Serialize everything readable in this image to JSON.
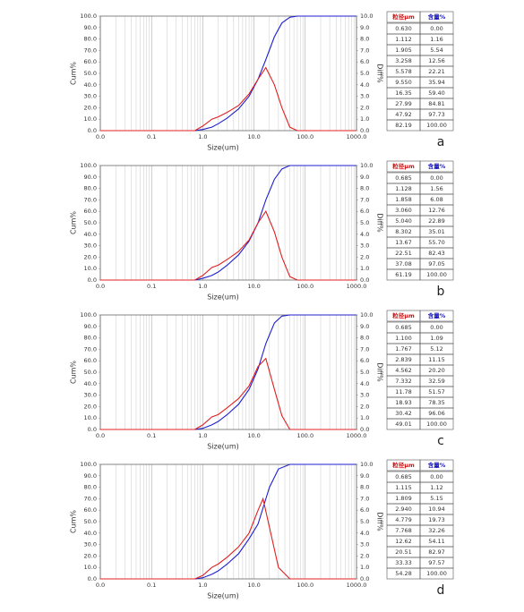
{
  "chart_data": [
    {
      "type": "line",
      "panel_label": "a",
      "x_label": "Size(um)",
      "y_label": "Cum%",
      "y2_label": "Diff%",
      "xscale": "log",
      "xlim": [
        0.01,
        1000
      ],
      "xticks": [
        {
          "value": 0.01,
          "label": "0.0"
        },
        {
          "value": 0.1,
          "label": "0.1"
        },
        {
          "value": 1,
          "label": "1.0"
        },
        {
          "value": 10,
          "label": "10.0"
        },
        {
          "value": 100,
          "label": "100.0"
        },
        {
          "value": 1000,
          "label": "1000.0"
        }
      ],
      "ylim": [
        0,
        100
      ],
      "yticks": [
        {
          "value": 0,
          "label": "0.0"
        },
        {
          "value": 10,
          "label": "10.0"
        },
        {
          "value": 20,
          "label": "20.0"
        },
        {
          "value": 30,
          "label": "30.0"
        },
        {
          "value": 40,
          "label": "40.0"
        },
        {
          "value": 50,
          "label": "50.0"
        },
        {
          "value": 60,
          "label": "60.0"
        },
        {
          "value": 70,
          "label": "70.0"
        },
        {
          "value": 80,
          "label": "80.0"
        },
        {
          "value": 90,
          "label": "90.0"
        },
        {
          "value": 100,
          "label": "100.0"
        }
      ],
      "y2lim": [
        0,
        10
      ],
      "y2ticks": [
        {
          "value": 0,
          "label": "0.0"
        },
        {
          "value": 1,
          "label": "1.0"
        },
        {
          "value": 2,
          "label": "2.0"
        },
        {
          "value": 3,
          "label": "3.0"
        },
        {
          "value": 4,
          "label": "4.0"
        },
        {
          "value": 5,
          "label": "5.0"
        },
        {
          "value": 6,
          "label": "6.0"
        },
        {
          "value": 7,
          "label": "7.0"
        },
        {
          "value": 8,
          "label": "8.0"
        },
        {
          "value": 9,
          "label": "9.0"
        },
        {
          "value": 10,
          "label": "10.0"
        }
      ],
      "x": [
        0.01,
        0.7,
        1,
        1.5,
        2,
        3,
        5,
        8,
        12,
        17,
        25,
        35,
        50,
        70,
        1000
      ],
      "series": [
        {
          "color": "#1f1fd0",
          "values": [
            0,
            0,
            1,
            3,
            6,
            11,
            19,
            30,
            45,
            62,
            82,
            94,
            99,
            100,
            100
          ]
        },
        {
          "color": "#e02020",
          "axis": "y2",
          "values": [
            0,
            0,
            0.4,
            1,
            1.2,
            1.6,
            2.2,
            3.2,
            4.5,
            5.5,
            4,
            2,
            0.3,
            0,
            0
          ]
        }
      ],
      "table": {
        "columns": [
          "粒径μm",
          "含量%"
        ],
        "rows": [
          [
            "0.630",
            "0.00"
          ],
          [
            "1.112",
            "1.16"
          ],
          [
            "1.905",
            "5.54"
          ],
          [
            "3.258",
            "12.56"
          ],
          [
            "5.578",
            "22.21"
          ],
          [
            "9.550",
            "35.94"
          ],
          [
            "16.35",
            "59.40"
          ],
          [
            "27.99",
            "84.81"
          ],
          [
            "47.92",
            "97.73"
          ],
          [
            "82.19",
            "100.00"
          ]
        ]
      }
    },
    {
      "type": "line",
      "panel_label": "b",
      "x_label": "Size(um)",
      "y_label": "Cum%",
      "y2_label": "Diff%",
      "xscale": "log",
      "xlim": [
        0.01,
        1000
      ],
      "xticks": [
        {
          "value": 0.01,
          "label": "0.0"
        },
        {
          "value": 0.1,
          "label": "0.1"
        },
        {
          "value": 1,
          "label": "1.0"
        },
        {
          "value": 10,
          "label": "10.0"
        },
        {
          "value": 100,
          "label": "100.0"
        },
        {
          "value": 1000,
          "label": "1000.0"
        }
      ],
      "ylim": [
        0,
        100
      ],
      "yticks": [
        {
          "value": 0,
          "label": "0.0"
        },
        {
          "value": 10,
          "label": "10.0"
        },
        {
          "value": 20,
          "label": "20.0"
        },
        {
          "value": 30,
          "label": "30.0"
        },
        {
          "value": 40,
          "label": "40.0"
        },
        {
          "value": 50,
          "label": "50.0"
        },
        {
          "value": 60,
          "label": "60.0"
        },
        {
          "value": 70,
          "label": "70.0"
        },
        {
          "value": 80,
          "label": "80.0"
        },
        {
          "value": 90,
          "label": "90.0"
        },
        {
          "value": 100,
          "label": "100.0"
        }
      ],
      "y2lim": [
        0,
        10
      ],
      "y2ticks": [
        {
          "value": 0,
          "label": "0.0"
        },
        {
          "value": 1,
          "label": "1.0"
        },
        {
          "value": 2,
          "label": "2.0"
        },
        {
          "value": 3,
          "label": "3.0"
        },
        {
          "value": 4,
          "label": "4.0"
        },
        {
          "value": 5,
          "label": "5.0"
        },
        {
          "value": 6,
          "label": "6.0"
        },
        {
          "value": 7,
          "label": "7.0"
        },
        {
          "value": 8,
          "label": "8.0"
        },
        {
          "value": 9,
          "label": "9.0"
        },
        {
          "value": 10,
          "label": "10.0"
        }
      ],
      "x": [
        0.01,
        0.7,
        1,
        1.5,
        2,
        3,
        5,
        8,
        12,
        17,
        25,
        35,
        50,
        70,
        1000
      ],
      "series": [
        {
          "color": "#1f1fd0",
          "values": [
            0,
            0,
            1.5,
            4,
            7,
            13,
            22,
            34,
            50,
            70,
            88,
            97,
            100,
            100,
            100
          ]
        },
        {
          "color": "#e02020",
          "axis": "y2",
          "values": [
            0,
            0,
            0.4,
            1.1,
            1.3,
            1.8,
            2.5,
            3.5,
            5,
            6,
            4.2,
            2,
            0.3,
            0,
            0
          ]
        }
      ],
      "table": {
        "columns": [
          "粒径μm",
          "含量%"
        ],
        "rows": [
          [
            "0.685",
            "0.00"
          ],
          [
            "1.128",
            "1.56"
          ],
          [
            "1.858",
            "6.08"
          ],
          [
            "3.060",
            "12.76"
          ],
          [
            "5.040",
            "22.89"
          ],
          [
            "8.302",
            "35.01"
          ],
          [
            "13.67",
            "55.70"
          ],
          [
            "22.51",
            "82.43"
          ],
          [
            "37.08",
            "97.05"
          ],
          [
            "61.19",
            "100.00"
          ]
        ]
      }
    },
    {
      "type": "line",
      "panel_label": "c",
      "x_label": "Size(um)",
      "y_label": "Cum%",
      "y2_label": "Diff%",
      "xscale": "log",
      "xlim": [
        0.01,
        1000
      ],
      "xticks": [
        {
          "value": 0.01,
          "label": "0.0"
        },
        {
          "value": 0.1,
          "label": "0.1"
        },
        {
          "value": 1,
          "label": "1.0"
        },
        {
          "value": 10,
          "label": "10.0"
        },
        {
          "value": 100,
          "label": "100.0"
        },
        {
          "value": 1000,
          "label": "1000.0"
        }
      ],
      "ylim": [
        0,
        100
      ],
      "yticks": [
        {
          "value": 0,
          "label": "0.0"
        },
        {
          "value": 10,
          "label": "10.0"
        },
        {
          "value": 20,
          "label": "20.0"
        },
        {
          "value": 30,
          "label": "30.0"
        },
        {
          "value": 40,
          "label": "40.0"
        },
        {
          "value": 50,
          "label": "50.0"
        },
        {
          "value": 60,
          "label": "60.0"
        },
        {
          "value": 70,
          "label": "70.0"
        },
        {
          "value": 80,
          "label": "80.0"
        },
        {
          "value": 90,
          "label": "90.0"
        },
        {
          "value": 100,
          "label": "100.0"
        }
      ],
      "y2lim": [
        0,
        10
      ],
      "y2ticks": [
        {
          "value": 0,
          "label": "0.0"
        },
        {
          "value": 1,
          "label": "1.0"
        },
        {
          "value": 2,
          "label": "2.0"
        },
        {
          "value": 3,
          "label": "3.0"
        },
        {
          "value": 4,
          "label": "4.0"
        },
        {
          "value": 5,
          "label": "5.0"
        },
        {
          "value": 6,
          "label": "6.0"
        },
        {
          "value": 7,
          "label": "7.0"
        },
        {
          "value": 8,
          "label": "8.0"
        },
        {
          "value": 9,
          "label": "9.0"
        },
        {
          "value": 10,
          "label": "10.0"
        }
      ],
      "x": [
        0.01,
        0.7,
        1,
        1.5,
        2,
        3,
        5,
        8,
        12,
        17,
        25,
        35,
        50,
        70,
        1000
      ],
      "series": [
        {
          "color": "#1f1fd0",
          "values": [
            0,
            0,
            1,
            4,
            7,
            13,
            22,
            35,
            53,
            75,
            93,
            99,
            100,
            100,
            100
          ]
        },
        {
          "color": "#e02020",
          "axis": "y2",
          "values": [
            0,
            0,
            0.4,
            1.1,
            1.3,
            1.9,
            2.7,
            3.8,
            5.5,
            6.2,
            3.5,
            1.2,
            0,
            0,
            0
          ]
        }
      ],
      "table": {
        "columns": [
          "粒径μm",
          "含量%"
        ],
        "rows": [
          [
            "0.685",
            "0.00"
          ],
          [
            "1.100",
            "1.09"
          ],
          [
            "1.767",
            "5.12"
          ],
          [
            "2.839",
            "11.15"
          ],
          [
            "4.562",
            "20.20"
          ],
          [
            "7.332",
            "32.59"
          ],
          [
            "11.78",
            "51.57"
          ],
          [
            "18.93",
            "78.35"
          ],
          [
            "30.42",
            "96.06"
          ],
          [
            "49.01",
            "100.00"
          ]
        ]
      }
    },
    {
      "type": "line",
      "panel_label": "d",
      "x_label": "Size(um)",
      "y_label": "Cum%",
      "y2_label": "Diff%",
      "xscale": "log",
      "xlim": [
        0.01,
        1000
      ],
      "xticks": [
        {
          "value": 0.01,
          "label": "0.0"
        },
        {
          "value": 0.1,
          "label": "0.1"
        },
        {
          "value": 1,
          "label": "1.0"
        },
        {
          "value": 10,
          "label": "10.0"
        },
        {
          "value": 100,
          "label": "100.0"
        },
        {
          "value": 1000,
          "label": "1000.0"
        }
      ],
      "ylim": [
        0,
        100
      ],
      "yticks": [
        {
          "value": 0,
          "label": "0.0"
        },
        {
          "value": 10,
          "label": "10.0"
        },
        {
          "value": 20,
          "label": "20.0"
        },
        {
          "value": 30,
          "label": "30.0"
        },
        {
          "value": 40,
          "label": "40.0"
        },
        {
          "value": 50,
          "label": "50.0"
        },
        {
          "value": 60,
          "label": "60.0"
        },
        {
          "value": 70,
          "label": "70.0"
        },
        {
          "value": 80,
          "label": "80.0"
        },
        {
          "value": 90,
          "label": "90.0"
        },
        {
          "value": 100,
          "label": "100.0"
        }
      ],
      "y2lim": [
        0,
        10
      ],
      "y2ticks": [
        {
          "value": 0,
          "label": "0.0"
        },
        {
          "value": 1,
          "label": "1.0"
        },
        {
          "value": 2,
          "label": "2.0"
        },
        {
          "value": 3,
          "label": "3.0"
        },
        {
          "value": 4,
          "label": "4.0"
        },
        {
          "value": 5,
          "label": "5.0"
        },
        {
          "value": 6,
          "label": "6.0"
        },
        {
          "value": 7,
          "label": "7.0"
        },
        {
          "value": 8,
          "label": "8.0"
        },
        {
          "value": 9,
          "label": "9.0"
        },
        {
          "value": 10,
          "label": "10.0"
        }
      ],
      "x": [
        0.01,
        0.7,
        1,
        1.5,
        2,
        3,
        5,
        8,
        12,
        15,
        20,
        30,
        50,
        70,
        1000
      ],
      "series": [
        {
          "color": "#1f1fd0",
          "values": [
            0,
            0,
            1,
            4,
            7,
            13,
            22,
            35,
            48,
            62,
            80,
            96,
            100,
            100,
            100
          ]
        },
        {
          "color": "#e02020",
          "axis": "y2",
          "values": [
            0,
            0,
            0.3,
            1,
            1.3,
            1.9,
            2.8,
            4,
            6,
            7,
            4.5,
            1,
            0,
            0,
            0
          ]
        }
      ],
      "table": {
        "columns": [
          "粒径μm",
          "含量%"
        ],
        "rows": [
          [
            "0.685",
            "0.00"
          ],
          [
            "1.115",
            "1.12"
          ],
          [
            "1.809",
            "5.15"
          ],
          [
            "2.940",
            "10.94"
          ],
          [
            "4.779",
            "19.73"
          ],
          [
            "7.768",
            "32.26"
          ],
          [
            "12.62",
            "54.11"
          ],
          [
            "20.51",
            "82.97"
          ],
          [
            "33.33",
            "97.57"
          ],
          [
            "54.28",
            "100.00"
          ]
        ]
      }
    }
  ]
}
